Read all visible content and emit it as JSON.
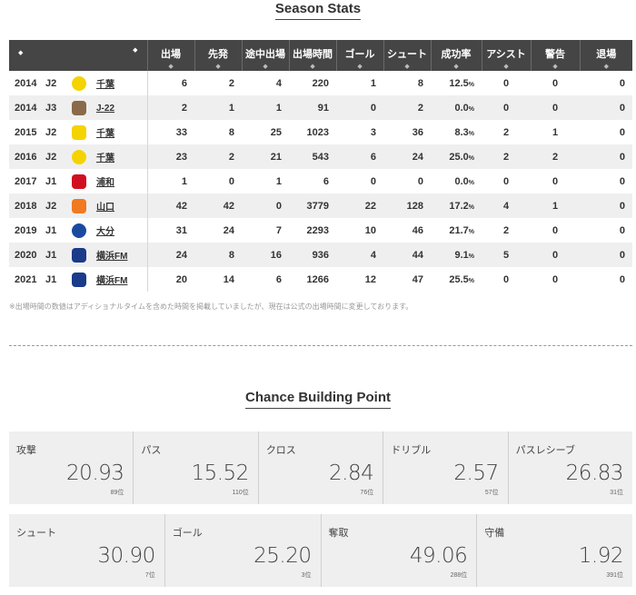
{
  "season_stats": {
    "title": "Season Stats",
    "headers": [
      "出場",
      "先発",
      "途中出場",
      "出場時間",
      "ゴール",
      "シュート",
      "成功率",
      "アシスト",
      "警告",
      "退場"
    ],
    "sort_icon": "◆",
    "rows": [
      {
        "year": "2014",
        "league": "J2",
        "team": "千葉",
        "emblem_color": "#f5d300",
        "stats": [
          "6",
          "2",
          "4",
          "220",
          "1",
          "8"
        ],
        "pct": "12.5",
        "assist": "0",
        "yellow": "0",
        "red": "0"
      },
      {
        "year": "2014",
        "league": "J3",
        "team": "J-22",
        "emblem_color": "#8a6a4a",
        "stats": [
          "2",
          "1",
          "1",
          "91",
          "0",
          "2"
        ],
        "pct": "0.0",
        "assist": "0",
        "yellow": "0",
        "red": "0"
      },
      {
        "year": "2015",
        "league": "J2",
        "team": "千葉",
        "emblem_color": "#f5d300",
        "stats": [
          "33",
          "8",
          "25",
          "1023",
          "3",
          "36"
        ],
        "pct": "8.3",
        "assist": "2",
        "yellow": "1",
        "red": "0"
      },
      {
        "year": "2016",
        "league": "J2",
        "team": "千葉",
        "emblem_color": "#f5d300",
        "stats": [
          "23",
          "2",
          "21",
          "543",
          "6",
          "24"
        ],
        "pct": "25.0",
        "assist": "2",
        "yellow": "2",
        "red": "0"
      },
      {
        "year": "2017",
        "league": "J1",
        "team": "浦和",
        "emblem_color": "#d01020",
        "stats": [
          "1",
          "0",
          "1",
          "6",
          "0",
          "0"
        ],
        "pct": "0.0",
        "assist": "0",
        "yellow": "0",
        "red": "0"
      },
      {
        "year": "2018",
        "league": "J2",
        "team": "山口",
        "emblem_color": "#f07a20",
        "stats": [
          "42",
          "42",
          "0",
          "3779",
          "22",
          "128"
        ],
        "pct": "17.2",
        "assist": "4",
        "yellow": "1",
        "red": "0"
      },
      {
        "year": "2019",
        "league": "J1",
        "team": "大分",
        "emblem_color": "#1a4aa0",
        "stats": [
          "31",
          "24",
          "7",
          "2293",
          "10",
          "46"
        ],
        "pct": "21.7",
        "assist": "2",
        "yellow": "0",
        "red": "0"
      },
      {
        "year": "2020",
        "league": "J1",
        "team": "横浜FM",
        "emblem_color": "#1a3a8a",
        "stats": [
          "24",
          "8",
          "16",
          "936",
          "4",
          "44"
        ],
        "pct": "9.1",
        "assist": "5",
        "yellow": "0",
        "red": "0"
      },
      {
        "year": "2021",
        "league": "J1",
        "team": "横浜FM",
        "emblem_color": "#1a3a8a",
        "stats": [
          "20",
          "14",
          "6",
          "1266",
          "12",
          "47"
        ],
        "pct": "25.5",
        "assist": "0",
        "yellow": "0",
        "red": "0"
      }
    ],
    "pct_unit": "%",
    "footnote": "※出場時間の数値はアディショナルタイムを含めた時間を掲載していましたが、現在は公式の出場時間に変更しております。"
  },
  "chance_building": {
    "title": "Chance Building Point",
    "row1": [
      {
        "label": "攻撃",
        "value": "20.93",
        "rank": "89位"
      },
      {
        "label": "パス",
        "value": "15.52",
        "rank": "110位"
      },
      {
        "label": "クロス",
        "value": "2.84",
        "rank": "76位"
      },
      {
        "label": "ドリブル",
        "value": "2.57",
        "rank": "57位"
      },
      {
        "label": "パスレシーブ",
        "value": "26.83",
        "rank": "31位"
      }
    ],
    "row2": [
      {
        "label": "シュート",
        "value": "30.90",
        "rank": "7位"
      },
      {
        "label": "ゴール",
        "value": "25.20",
        "rank": "3位"
      },
      {
        "label": "奪取",
        "value": "49.06",
        "rank": "288位"
      },
      {
        "label": "守備",
        "value": "1.92",
        "rank": "391位"
      }
    ]
  }
}
